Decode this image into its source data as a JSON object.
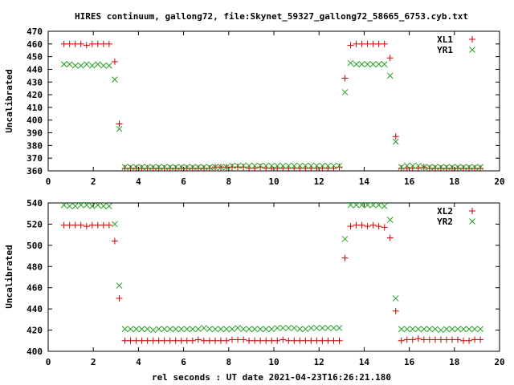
{
  "chart_data": {
    "title": "HIRES continuum, gallong72, file:Skynet_59327_gallong72_58665_6753.cyb.txt",
    "xlabel": "rel seconds : UT date 2021-04-23T16:26:21.180",
    "colors": {
      "red": "#cc0000",
      "green": "#22a022"
    },
    "panels": [
      {
        "type": "scatter",
        "ylabel": "Uncalibrated",
        "xlim": [
          0,
          20
        ],
        "ylim": [
          360,
          470
        ],
        "xticks": [
          0,
          2,
          4,
          6,
          8,
          10,
          12,
          14,
          16,
          18,
          20
        ],
        "yticks": [
          360,
          370,
          380,
          390,
          400,
          410,
          420,
          430,
          440,
          450,
          460,
          470
        ],
        "legend_position": "top-right",
        "series": [
          {
            "name": "XL1",
            "marker": "plus",
            "color": "#cc0000",
            "x": [
              0.7,
              0.95,
              1.2,
              1.45,
              1.7,
              1.95,
              2.2,
              2.45,
              2.7,
              2.95,
              3.15,
              3.4,
              3.65,
              3.9,
              4.15,
              4.4,
              4.65,
              4.9,
              5.15,
              5.4,
              5.65,
              5.9,
              6.15,
              6.4,
              6.65,
              6.9,
              7.15,
              7.4,
              7.65,
              7.9,
              8.15,
              8.4,
              8.65,
              8.9,
              9.15,
              9.4,
              9.65,
              9.9,
              10.15,
              10.4,
              10.65,
              10.9,
              11.15,
              11.4,
              11.65,
              11.9,
              12.15,
              12.4,
              12.65,
              12.9,
              13.15,
              13.4,
              13.65,
              13.9,
              14.15,
              14.4,
              14.65,
              14.9,
              15.15,
              15.4,
              15.65,
              15.9,
              16.15,
              16.4,
              16.65,
              16.9,
              17.15,
              17.4,
              17.65,
              17.9,
              18.15,
              18.4,
              18.65,
              18.9,
              19.15
            ],
            "y": [
              460,
              460,
              460,
              460,
              459,
              460,
              460,
              460,
              460,
              446,
              397,
              362,
              362,
              362,
              362,
              362,
              362,
              362,
              362,
              362,
              362,
              362,
              362,
              362,
              362,
              362,
              362,
              363,
              363,
              363,
              363,
              363,
              363,
              362,
              362,
              363,
              362,
              362,
              362,
              362,
              362,
              362,
              362,
              362,
              362,
              362,
              362,
              362,
              362,
              363,
              433,
              459,
              460,
              460,
              460,
              460,
              460,
              460,
              449,
              387,
              362,
              362,
              362,
              362,
              363,
              362,
              362,
              362,
              362,
              362,
              362,
              362,
              362,
              362,
              362
            ]
          },
          {
            "name": "YR1",
            "marker": "cross",
            "color": "#22a022",
            "x": [
              0.7,
              0.95,
              1.2,
              1.45,
              1.7,
              1.95,
              2.2,
              2.45,
              2.7,
              2.95,
              3.15,
              3.4,
              3.65,
              3.9,
              4.15,
              4.4,
              4.65,
              4.9,
              5.15,
              5.4,
              5.65,
              5.9,
              6.15,
              6.4,
              6.65,
              6.9,
              7.15,
              7.4,
              7.65,
              7.9,
              8.15,
              8.4,
              8.65,
              8.9,
              9.15,
              9.4,
              9.65,
              9.9,
              10.15,
              10.4,
              10.65,
              10.9,
              11.15,
              11.4,
              11.65,
              11.9,
              12.15,
              12.4,
              12.65,
              12.9,
              13.15,
              13.4,
              13.65,
              13.9,
              14.15,
              14.4,
              14.65,
              14.9,
              15.15,
              15.4,
              15.65,
              15.9,
              16.15,
              16.4,
              16.65,
              16.9,
              17.15,
              17.4,
              17.65,
              17.9,
              18.15,
              18.4,
              18.65,
              18.9,
              19.15
            ],
            "y": [
              444,
              444,
              443,
              443,
              444,
              443,
              444,
              443,
              443,
              432,
              393,
              363,
              363,
              363,
              363,
              363,
              363,
              363,
              363,
              363,
              363,
              363,
              363,
              363,
              363,
              363,
              363,
              363,
              363,
              363,
              364,
              364,
              364,
              364,
              364,
              364,
              364,
              364,
              364,
              364,
              364,
              364,
              364,
              364,
              364,
              364,
              364,
              364,
              364,
              364,
              422,
              445,
              444,
              444,
              444,
              444,
              444,
              444,
              435,
              383,
              363,
              364,
              364,
              364,
              363,
              363,
              363,
              363,
              363,
              363,
              363,
              363,
              363,
              363,
              363
            ]
          }
        ]
      },
      {
        "type": "scatter",
        "ylabel": "Uncalibrated",
        "xlim": [
          0,
          20
        ],
        "ylim": [
          400,
          540
        ],
        "xticks": [
          0,
          2,
          4,
          6,
          8,
          10,
          12,
          14,
          16,
          18,
          20
        ],
        "yticks": [
          400,
          420,
          440,
          460,
          480,
          500,
          520,
          540
        ],
        "legend_position": "top-right",
        "series": [
          {
            "name": "XL2",
            "marker": "plus",
            "color": "#cc0000",
            "x": [
              0.7,
              0.95,
              1.2,
              1.45,
              1.7,
              1.95,
              2.2,
              2.45,
              2.7,
              2.95,
              3.15,
              3.4,
              3.65,
              3.9,
              4.15,
              4.4,
              4.65,
              4.9,
              5.15,
              5.4,
              5.65,
              5.9,
              6.15,
              6.4,
              6.65,
              6.9,
              7.15,
              7.4,
              7.65,
              7.9,
              8.15,
              8.4,
              8.65,
              8.9,
              9.15,
              9.4,
              9.65,
              9.9,
              10.15,
              10.4,
              10.65,
              10.9,
              11.15,
              11.4,
              11.65,
              11.9,
              12.15,
              12.4,
              12.65,
              12.9,
              13.15,
              13.4,
              13.65,
              13.9,
              14.15,
              14.4,
              14.65,
              14.9,
              15.15,
              15.4,
              15.65,
              15.9,
              16.15,
              16.4,
              16.65,
              16.9,
              17.15,
              17.4,
              17.65,
              17.9,
              18.15,
              18.4,
              18.65,
              18.9,
              19.15
            ],
            "y": [
              519,
              519,
              519,
              519,
              518,
              519,
              519,
              519,
              519,
              504,
              450,
              410,
              410,
              410,
              410,
              410,
              410,
              410,
              410,
              410,
              410,
              410,
              410,
              410,
              411,
              410,
              410,
              410,
              410,
              410,
              411,
              411,
              411,
              410,
              410,
              410,
              410,
              410,
              410,
              411,
              410,
              410,
              410,
              410,
              410,
              410,
              410,
              410,
              410,
              410,
              488,
              518,
              519,
              519,
              518,
              519,
              518,
              517,
              507,
              438,
              410,
              411,
              411,
              412,
              411,
              411,
              411,
              411,
              411,
              411,
              411,
              410,
              410,
              411,
              411
            ]
          },
          {
            "name": "YR2",
            "marker": "cross",
            "color": "#22a022",
            "x": [
              0.7,
              0.95,
              1.2,
              1.45,
              1.7,
              1.95,
              2.2,
              2.45,
              2.7,
              2.95,
              3.15,
              3.4,
              3.65,
              3.9,
              4.15,
              4.4,
              4.65,
              4.9,
              5.15,
              5.4,
              5.65,
              5.9,
              6.15,
              6.4,
              6.65,
              6.9,
              7.15,
              7.4,
              7.65,
              7.9,
              8.15,
              8.4,
              8.65,
              8.9,
              9.15,
              9.4,
              9.65,
              9.9,
              10.15,
              10.4,
              10.65,
              10.9,
              11.15,
              11.4,
              11.65,
              11.9,
              12.15,
              12.4,
              12.65,
              12.9,
              13.15,
              13.4,
              13.65,
              13.9,
              14.15,
              14.4,
              14.65,
              14.9,
              15.15,
              15.4,
              15.65,
              15.9,
              16.15,
              16.4,
              16.65,
              16.9,
              17.15,
              17.4,
              17.65,
              17.9,
              18.15,
              18.4,
              18.65,
              18.9,
              19.15
            ],
            "y": [
              538,
              537,
              537,
              538,
              538,
              537,
              538,
              537,
              537,
              520,
              462,
              421,
              421,
              421,
              421,
              421,
              420,
              421,
              421,
              421,
              421,
              421,
              421,
              421,
              421,
              422,
              421,
              421,
              421,
              421,
              421,
              422,
              421,
              421,
              421,
              421,
              421,
              421,
              422,
              422,
              422,
              422,
              421,
              421,
              422,
              422,
              422,
              422,
              422,
              422,
              506,
              538,
              538,
              538,
              538,
              538,
              538,
              537,
              524,
              450,
              421,
              421,
              421,
              421,
              421,
              421,
              421,
              420,
              421,
              421,
              421,
              421,
              421,
              421,
              421
            ]
          }
        ]
      }
    ]
  }
}
